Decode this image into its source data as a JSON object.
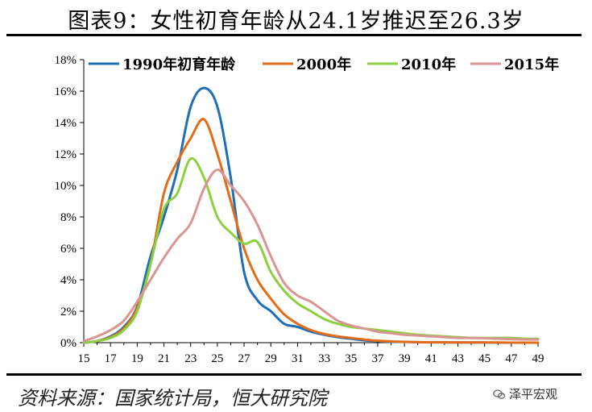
{
  "chart_data": {
    "type": "line",
    "title": "图表9：女性初育年龄从24.1岁推迟至26.3岁",
    "xlabel": "",
    "ylabel": "",
    "xlim": [
      15,
      49
    ],
    "ylim": [
      0,
      18
    ],
    "x_ticks": [
      15,
      17,
      19,
      21,
      23,
      25,
      27,
      29,
      31,
      33,
      35,
      37,
      39,
      41,
      43,
      45,
      47,
      49
    ],
    "y_ticks": [
      0,
      2,
      4,
      6,
      8,
      10,
      12,
      14,
      16,
      18
    ],
    "y_tick_labels": [
      "0%",
      "2%",
      "4%",
      "6%",
      "8%",
      "10%",
      "12%",
      "14%",
      "16%",
      "18%"
    ],
    "legend_position": "top",
    "series": [
      {
        "name": "1990年初育年龄",
        "color": "#1f6fb8",
        "x": [
          15,
          16,
          17,
          18,
          19,
          20,
          21,
          22,
          23,
          24,
          25,
          26,
          27,
          28,
          29,
          30,
          31,
          32,
          33,
          34,
          35,
          36,
          37,
          38,
          39,
          40,
          41,
          42,
          43,
          44,
          45,
          46,
          47,
          48,
          49
        ],
        "values": [
          0.0,
          0.1,
          0.4,
          1.0,
          2.3,
          5.5,
          8.0,
          11.0,
          15.0,
          16.2,
          15.0,
          10.5,
          4.5,
          2.7,
          2.0,
          1.2,
          1.0,
          0.7,
          0.5,
          0.35,
          0.25,
          0.15,
          0.1,
          0.05,
          0.05,
          0.03,
          0.02,
          0.02,
          0.01,
          0.01,
          0.01,
          0.0,
          0.0,
          0.0,
          0.0
        ]
      },
      {
        "name": "2000年",
        "color": "#e36c19",
        "x": [
          15,
          16,
          17,
          18,
          19,
          20,
          21,
          22,
          23,
          24,
          25,
          26,
          27,
          28,
          29,
          30,
          31,
          32,
          33,
          34,
          35,
          36,
          37,
          38,
          39,
          40,
          41,
          42,
          43,
          44,
          45,
          46,
          47,
          48,
          49
        ],
        "values": [
          0.0,
          0.1,
          0.35,
          0.9,
          2.2,
          5.0,
          9.5,
          11.5,
          13.0,
          14.2,
          12.0,
          9.0,
          6.0,
          4.0,
          2.8,
          1.8,
          1.2,
          0.8,
          0.55,
          0.4,
          0.3,
          0.2,
          0.12,
          0.08,
          0.05,
          0.03,
          0.02,
          0.02,
          0.01,
          0.01,
          0.01,
          0.01,
          0.0,
          0.0,
          0.0
        ]
      },
      {
        "name": "2010年",
        "color": "#8dcf3f",
        "x": [
          15,
          16,
          17,
          18,
          19,
          20,
          21,
          22,
          23,
          24,
          25,
          26,
          27,
          28,
          29,
          30,
          31,
          32,
          33,
          34,
          35,
          36,
          37,
          38,
          39,
          40,
          41,
          42,
          43,
          44,
          45,
          46,
          47,
          48,
          49
        ],
        "values": [
          0.0,
          0.1,
          0.3,
          0.8,
          2.0,
          5.0,
          8.5,
          9.5,
          11.7,
          10.5,
          8.0,
          7.0,
          6.3,
          6.4,
          4.5,
          3.3,
          2.5,
          2.0,
          1.5,
          1.2,
          1.0,
          0.9,
          0.8,
          0.7,
          0.6,
          0.5,
          0.45,
          0.4,
          0.35,
          0.3,
          0.3,
          0.3,
          0.3,
          0.25,
          0.25
        ]
      },
      {
        "name": "2015年",
        "color": "#d99594",
        "x": [
          15,
          16,
          17,
          18,
          19,
          20,
          21,
          22,
          23,
          24,
          25,
          26,
          27,
          28,
          29,
          30,
          31,
          32,
          33,
          34,
          35,
          36,
          37,
          38,
          39,
          40,
          41,
          42,
          43,
          44,
          45,
          46,
          47,
          48,
          49
        ],
        "values": [
          0.1,
          0.4,
          0.8,
          1.4,
          2.6,
          4.0,
          5.4,
          6.6,
          7.6,
          9.8,
          11.0,
          10.0,
          9.0,
          7.5,
          5.5,
          3.8,
          3.0,
          2.6,
          2.0,
          1.4,
          1.1,
          0.9,
          0.7,
          0.6,
          0.5,
          0.45,
          0.4,
          0.35,
          0.3,
          0.3,
          0.28,
          0.25,
          0.22,
          0.2,
          0.2
        ]
      }
    ]
  },
  "source": "资料来源：国家统计局，恒大研究院",
  "watermark": "泽平宏观"
}
